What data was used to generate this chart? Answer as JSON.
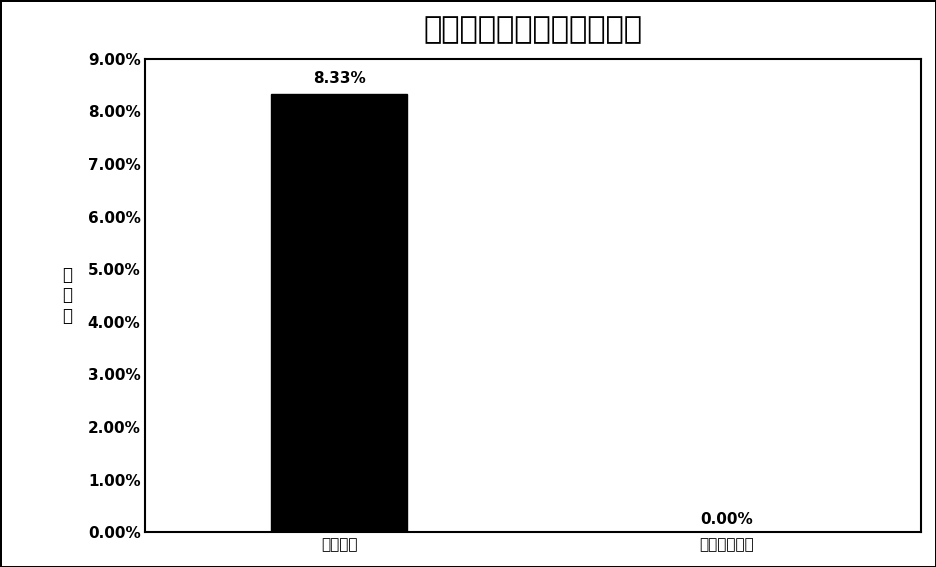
{
  "title": "痰液前处理方法抑制率对比",
  "categories": [
    "碰裂解法",
    "中和法加硫脇"
  ],
  "values": [
    0.0833,
    0.0
  ],
  "bar_labels": [
    "8.33%",
    "0.00%"
  ],
  "ylabel_chars": [
    "抑",
    "制",
    "率"
  ],
  "bar_color": "#000000",
  "background_color": "#ffffff",
  "border_color": "#000000",
  "ylim": [
    0,
    0.09
  ],
  "yticks": [
    0.0,
    0.01,
    0.02,
    0.03,
    0.04,
    0.05,
    0.06,
    0.07,
    0.08,
    0.09
  ],
  "ytick_labels": [
    "0.00%",
    "1.00%",
    "2.00%",
    "3.00%",
    "4.00%",
    "5.00%",
    "6.00%",
    "7.00%",
    "8.00%",
    "9.00%"
  ],
  "title_fontsize": 22,
  "label_fontsize": 12,
  "tick_fontsize": 11,
  "bar_label_fontsize": 11,
  "bar_width": 0.35,
  "x_positions": [
    0,
    1
  ],
  "figsize": [
    9.36,
    5.67
  ],
  "dpi": 100
}
